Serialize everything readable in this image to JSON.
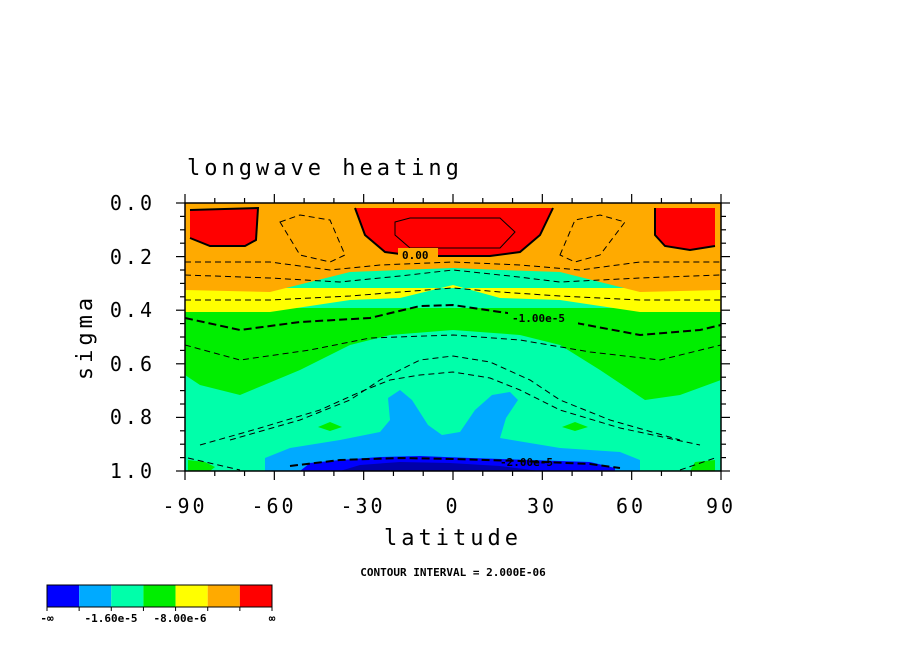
{
  "chart_data": {
    "type": "contour",
    "title": "longwave heating",
    "xlabel": "latitude",
    "ylabel": "sigma",
    "xlim": [
      -90,
      90
    ],
    "ylim": [
      1.0,
      0.0
    ],
    "x_ticks": [
      "-90",
      "-60",
      "-30",
      "0",
      "30",
      "60",
      "90"
    ],
    "y_ticks": [
      "0.0",
      "0.2",
      "0.4",
      "0.6",
      "0.8",
      "1.0"
    ],
    "contour_interval_text": "CONTOUR INTERVAL = 2.000E-06",
    "contour_labels": [
      "0.00",
      "-1.00e-5",
      "-2.00e-5"
    ],
    "colorbar": {
      "colors": [
        "#0000ff",
        "#00aaff",
        "#00ffaa",
        "#00ee00",
        "#ffff00",
        "#ffaa00",
        "#ff0000"
      ],
      "labels": [
        "-∞",
        "-1.60e-5",
        "-8.00e-6",
        "∞"
      ]
    }
  }
}
